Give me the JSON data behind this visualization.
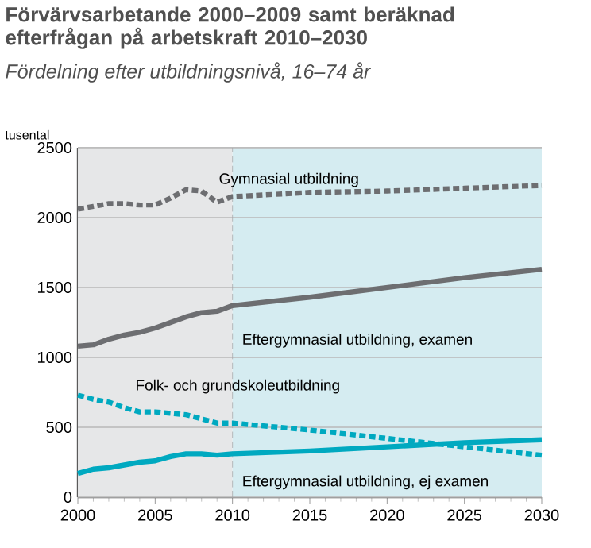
{
  "chart_data": {
    "type": "line",
    "title": "Förvärvsarbetande 2000–2009 samt beräknad efterfrågan på arbetskraft 2010–2030",
    "subtitle": "Fördelning efter utbildningsnivå, 16–74 år",
    "ylabel": "tusental",
    "x": [
      2000,
      2001,
      2002,
      2003,
      2004,
      2005,
      2006,
      2007,
      2008,
      2009,
      2010,
      2015,
      2020,
      2025,
      2030
    ],
    "series": [
      {
        "name": "Gymnasial utbildning",
        "color": "#6d6e71",
        "line_style": "dashed",
        "values": [
          2060,
          2080,
          2100,
          2100,
          2090,
          2090,
          2140,
          2200,
          2190,
          2110,
          2150,
          2180,
          2190,
          2210,
          2230
        ]
      },
      {
        "name": "Eftergymnasial utbildning, examen",
        "color": "#6d6e71",
        "line_style": "solid",
        "values": [
          1080,
          1090,
          1130,
          1160,
          1180,
          1210,
          1250,
          1290,
          1320,
          1330,
          1370,
          1430,
          1500,
          1570,
          1630
        ]
      },
      {
        "name": "Folk- och grundskoleutbildning",
        "color": "#00a9c0",
        "line_style": "dashed",
        "values": [
          730,
          700,
          680,
          640,
          610,
          610,
          600,
          590,
          560,
          530,
          530,
          480,
          420,
          360,
          300
        ]
      },
      {
        "name": "Eftergymnasial utbildning, ej examen",
        "color": "#00a9c0",
        "line_style": "solid",
        "values": [
          170,
          200,
          210,
          230,
          250,
          260,
          290,
          310,
          310,
          300,
          310,
          330,
          360,
          390,
          410
        ]
      }
    ],
    "xlim": [
      2000,
      2030
    ],
    "xticks": [
      2000,
      2005,
      2010,
      2015,
      2020,
      2025,
      2030
    ],
    "ylim": [
      0,
      2500
    ],
    "yticks": [
      0,
      500,
      1000,
      1500,
      2000,
      2500
    ],
    "grid": "y",
    "marker": "none",
    "bands": [
      {
        "axis": "x",
        "from": 2000,
        "to": 2010,
        "color": "#e6e7e8"
      },
      {
        "axis": "x",
        "from": 2010,
        "to": 2030,
        "color": "#d5ecf1"
      }
    ],
    "ref_lines": [
      {
        "axis": "x",
        "value": 2010,
        "color": "#a7a9ac",
        "line_style": "dashed"
      }
    ]
  }
}
